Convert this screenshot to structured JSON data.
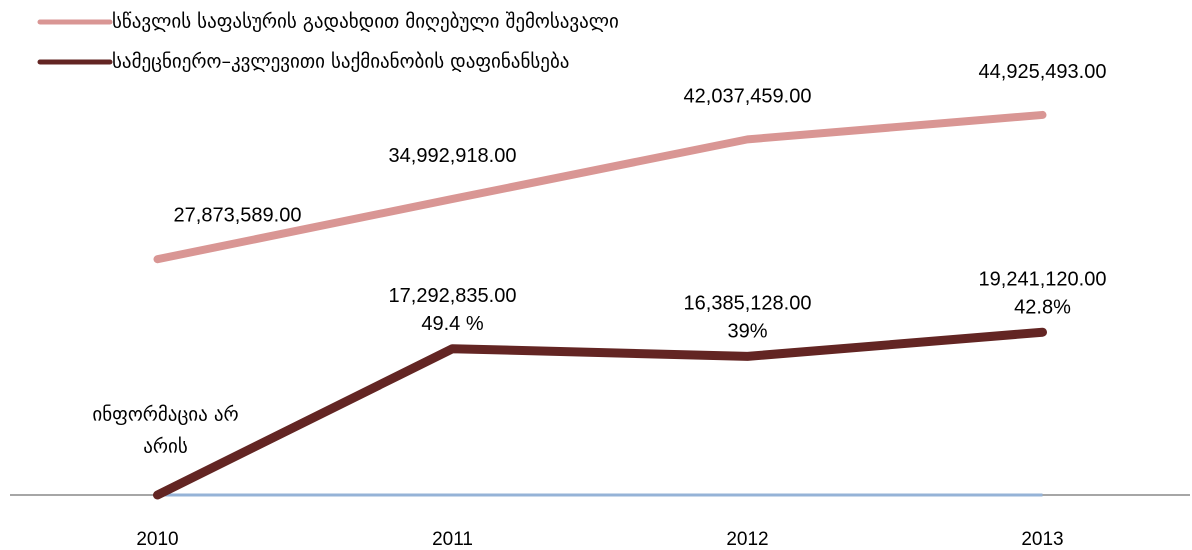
{
  "chart_data": {
    "type": "line",
    "categories": [
      "2010",
      "2011",
      "2012",
      "2013"
    ],
    "series": [
      {
        "name": "სწავლის საფასურის გადახდით მიღებული შემოსავალი",
        "color": "#d99694",
        "values": [
          27873589,
          34992918,
          42037459,
          44925493
        ],
        "value_labels": [
          "27,873,589.00",
          "34,992,918.00",
          "42,037,459.00",
          "44,925,493.00"
        ]
      },
      {
        "name": "სამეცნიერო–კვლევითი საქმიანობის დაფინანსება",
        "color": "#632523",
        "values": [
          0,
          17292835,
          16385128,
          19241120
        ],
        "value_labels": [
          null,
          "17,292,835.00",
          "16,385,128.00",
          "19,241,120.00"
        ],
        "shares": [
          null,
          "49.4 %",
          "39%",
          "42.8%"
        ]
      }
    ],
    "annotations": [
      {
        "category": 0,
        "lines": [
          "ინფორმაცია არ",
          "არის"
        ]
      }
    ],
    "ylim": [
      0,
      50000000
    ],
    "legend": "top-left"
  }
}
